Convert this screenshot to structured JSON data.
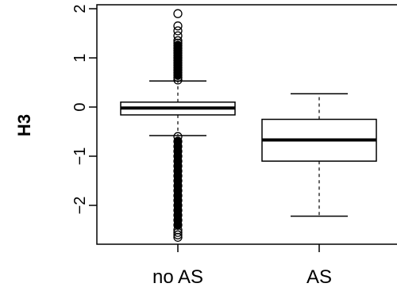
{
  "chart_data": {
    "type": "boxplot",
    "title": "",
    "xlabel": "",
    "ylabel": "H3",
    "ylim": [
      -2.75,
      2.05
    ],
    "yticks": [
      -2,
      -1,
      0,
      1,
      2
    ],
    "ytick_labels": [
      "−2",
      "−1",
      "0",
      "1",
      "2"
    ],
    "grid": false,
    "categories": [
      "no AS",
      "AS"
    ],
    "boxes": [
      {
        "category": "no AS",
        "whisker_low": -0.58,
        "q1": -0.16,
        "median": -0.02,
        "q3": 0.1,
        "whisker_high": 0.53,
        "outliers_high": [
          0.55,
          0.6,
          0.65,
          0.7,
          0.75,
          0.8,
          0.85,
          0.9,
          0.95,
          1.0,
          1.05,
          1.1,
          1.15,
          1.2,
          1.25,
          1.3,
          1.35,
          1.45,
          1.55,
          1.65,
          1.9
        ],
        "outliers_low": [
          -0.6,
          -0.7,
          -0.8,
          -0.9,
          -1.0,
          -1.1,
          -1.2,
          -1.3,
          -1.4,
          -1.5,
          -1.6,
          -1.7,
          -1.8,
          -1.9,
          -2.0,
          -2.1,
          -2.2,
          -2.3,
          -2.4,
          -2.5,
          -2.55,
          -2.6,
          -2.65
        ]
      },
      {
        "category": "AS",
        "whisker_low": -2.22,
        "q1": -1.1,
        "median": -0.67,
        "q3": -0.25,
        "whisker_high": 0.27,
        "outliers_high": [],
        "outliers_low": []
      }
    ]
  }
}
